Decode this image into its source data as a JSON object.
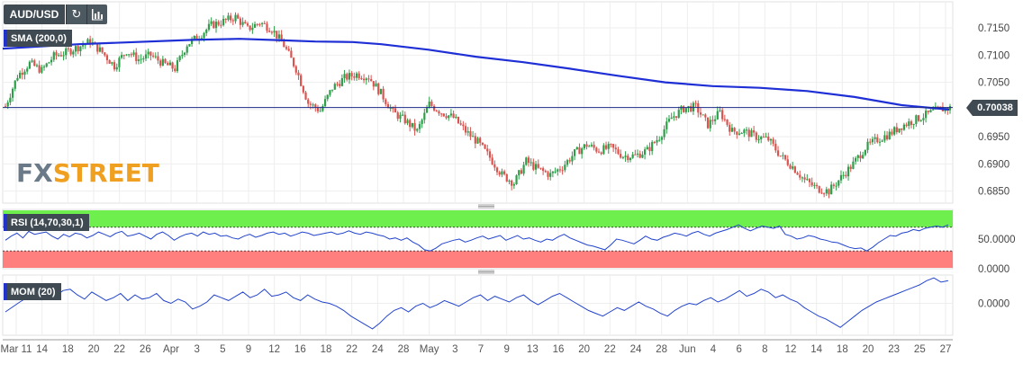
{
  "toolbar": {
    "symbol": "AUD/USD",
    "refresh_icon": "refresh-icon",
    "bars_icon": "bar-chart-icon"
  },
  "watermark": {
    "part1": "FX",
    "part2": "STREET",
    "color1": "#6b7a88",
    "color2": "#f0a020"
  },
  "colors": {
    "up": "#2e9e4a",
    "down": "#d9534f",
    "sma": "#1f2fd6",
    "rsi": "#2244cc",
    "mom": "#2244cc",
    "rsi_upper_zone": "#66ee44",
    "rsi_lower_zone": "#ff7777",
    "badge": "#3f4a52"
  },
  "chart_data": [
    {
      "type": "candlestick",
      "id": "price",
      "symbol": "AUD/USD",
      "indicator_label": "SMA (200,0)",
      "current_price": 0.70038,
      "current_price_label": "0.70038",
      "y_ticks": [
        "0.7150",
        "0.7100",
        "0.7050",
        "0.7000",
        "0.6950",
        "0.6900",
        "0.6850"
      ],
      "ylim": [
        0.6828,
        0.7198
      ],
      "x_ticks": [
        "Mar 11",
        "14",
        "18",
        "20",
        "22",
        "26",
        "Apr",
        "3",
        "5",
        "9",
        "12",
        "16",
        "18",
        "22",
        "24",
        "28",
        "May",
        "3",
        "7",
        "9",
        "13",
        "16",
        "20",
        "22",
        "24",
        "28",
        "Jun",
        "4",
        "6",
        "8",
        "12",
        "14",
        "18",
        "20",
        "23",
        "25",
        "27"
      ],
      "close_path": [
        [
          0,
          0.7006
        ],
        [
          5,
          0.7062
        ],
        [
          10,
          0.7085
        ],
        [
          15,
          0.7072
        ],
        [
          20,
          0.7098
        ],
        [
          25,
          0.7105
        ],
        [
          30,
          0.7115
        ],
        [
          35,
          0.7125
        ],
        [
          40,
          0.7105
        ],
        [
          45,
          0.708
        ],
        [
          50,
          0.7108
        ],
        [
          55,
          0.7092
        ],
        [
          60,
          0.71
        ],
        [
          65,
          0.7085
        ],
        [
          70,
          0.7075
        ],
        [
          75,
          0.712
        ],
        [
          80,
          0.7135
        ],
        [
          85,
          0.7155
        ],
        [
          90,
          0.7162
        ],
        [
          95,
          0.717
        ],
        [
          100,
          0.7148
        ],
        [
          105,
          0.716
        ],
        [
          110,
          0.7148
        ],
        [
          115,
          0.7118
        ],
        [
          120,
          0.7075
        ],
        [
          125,
          0.7012
        ],
        [
          130,
          0.6998
        ],
        [
          135,
          0.704
        ],
        [
          140,
          0.7058
        ],
        [
          145,
          0.7065
        ],
        [
          150,
          0.706
        ],
        [
          155,
          0.703
        ],
        [
          160,
          0.6995
        ],
        [
          165,
          0.698
        ],
        [
          170,
          0.696
        ],
        [
          175,
          0.701
        ],
        [
          180,
          0.6995
        ],
        [
          185,
          0.6985
        ],
        [
          190,
          0.696
        ],
        [
          195,
          0.694
        ],
        [
          200,
          0.6912
        ],
        [
          205,
          0.688
        ],
        [
          210,
          0.6865
        ],
        [
          215,
          0.6905
        ],
        [
          220,
          0.689
        ],
        [
          225,
          0.688
        ],
        [
          230,
          0.6895
        ],
        [
          235,
          0.692
        ],
        [
          240,
          0.6935
        ],
        [
          245,
          0.6925
        ],
        [
          250,
          0.693
        ],
        [
          255,
          0.6915
        ],
        [
          260,
          0.6915
        ],
        [
          265,
          0.6925
        ],
        [
          270,
          0.695
        ],
        [
          275,
          0.6985
        ],
        [
          280,
          0.7002
        ],
        [
          285,
          0.7005
        ],
        [
          290,
          0.6972
        ],
        [
          295,
          0.6995
        ],
        [
          300,
          0.696
        ],
        [
          305,
          0.696
        ],
        [
          310,
          0.695
        ],
        [
          315,
          0.6945
        ],
        [
          320,
          0.6915
        ],
        [
          325,
          0.6895
        ],
        [
          330,
          0.687
        ],
        [
          335,
          0.6855
        ],
        [
          340,
          0.685
        ],
        [
          345,
          0.6875
        ],
        [
          350,
          0.69
        ],
        [
          355,
          0.693
        ],
        [
          360,
          0.6945
        ],
        [
          365,
          0.6955
        ],
        [
          370,
          0.697
        ],
        [
          375,
          0.698
        ],
        [
          380,
          0.699
        ],
        [
          385,
          0.7
        ],
        [
          390,
          0.7003
        ]
      ],
      "sma_path": [
        [
          0.0,
          0.7112
        ],
        [
          0.08,
          0.712
        ],
        [
          0.2,
          0.7128
        ],
        [
          0.25,
          0.713
        ],
        [
          0.3,
          0.7127
        ],
        [
          0.33,
          0.7125
        ],
        [
          0.37,
          0.7124
        ],
        [
          0.4,
          0.712
        ],
        [
          0.45,
          0.711
        ],
        [
          0.5,
          0.7097
        ],
        [
          0.55,
          0.7087
        ],
        [
          0.6,
          0.7075
        ],
        [
          0.65,
          0.7062
        ],
        [
          0.7,
          0.705
        ],
        [
          0.75,
          0.7043
        ],
        [
          0.8,
          0.704
        ],
        [
          0.85,
          0.7034
        ],
        [
          0.9,
          0.7023
        ],
        [
          0.95,
          0.7008
        ],
        [
          1.0,
          0.7
        ]
      ]
    },
    {
      "type": "line",
      "id": "rsi",
      "indicator_label": "RSI (14,70,30,1)",
      "y_ticks": [
        "50.0000",
        "0.0000"
      ],
      "levels": [
        70,
        30
      ],
      "ylim": [
        0,
        100
      ],
      "values": [
        48,
        55,
        60,
        52,
        63,
        58,
        60,
        62,
        55,
        50,
        58,
        54,
        60,
        58,
        52,
        56,
        62,
        58,
        54,
        60,
        63,
        55,
        57,
        60,
        55,
        50,
        58,
        62,
        56,
        48,
        54,
        58,
        60,
        55,
        62,
        58,
        60,
        55,
        56,
        52,
        50,
        55,
        58,
        53,
        56,
        60,
        62,
        58,
        60,
        55,
        58,
        62,
        60,
        56,
        58,
        60,
        62,
        58,
        60,
        64,
        60,
        58,
        62,
        60,
        57,
        55,
        50,
        52,
        48,
        52,
        45,
        40,
        32,
        30,
        35,
        42,
        45,
        48,
        50,
        45,
        48,
        52,
        55,
        50,
        53,
        56,
        48,
        52,
        56,
        50,
        52,
        48,
        45,
        50,
        48,
        54,
        58,
        52,
        48,
        44,
        40,
        38,
        35,
        32,
        40,
        50,
        48,
        45,
        42,
        48,
        55,
        50,
        48,
        53,
        56,
        60,
        58,
        55,
        60,
        63,
        58,
        55,
        60,
        63,
        66,
        70,
        74,
        68,
        64,
        68,
        72,
        70,
        68,
        72,
        58,
        55,
        50,
        52,
        56,
        54,
        50,
        48,
        45,
        44,
        40,
        36,
        34,
        35,
        30,
        36,
        44,
        50,
        56,
        55,
        60,
        62,
        66,
        64,
        68,
        70,
        72,
        70,
        74
      ]
    },
    {
      "type": "line",
      "id": "mom",
      "indicator_label": "MOM (20)",
      "y_ticks": [
        "0.0000"
      ],
      "ylim": [
        -0.0045,
        0.004
      ],
      "values": [
        -0.0012,
        -0.0005,
        0.0002,
        0.0008,
        0.0012,
        0.0005,
        0.0014,
        0.001,
        0.0018,
        0.002,
        0.0012,
        0.0006,
        0.0016,
        0.001,
        0.0004,
        0.0008,
        0.0014,
        0.0004,
        0.0012,
        0.0006,
        0.0008,
        0.0014,
        0.0004,
        0.0,
        0.0006,
        0.0002,
        -0.0008,
        -0.0004,
        0.0002,
        0.0012,
        0.0008,
        0.0004,
        0.001,
        0.0016,
        0.0008,
        0.0012,
        0.002,
        0.001,
        0.0012,
        0.0016,
        0.0008,
        0.0004,
        0.0012,
        0.0006,
        0.0002,
        0.0,
        -0.0004,
        -0.001,
        -0.0018,
        -0.0024,
        -0.003,
        -0.0036,
        -0.0028,
        -0.0018,
        -0.001,
        -0.0006,
        -0.0012,
        -0.0004,
        0.0,
        -0.0006,
        -0.0002,
        0.0004,
        0.0,
        -0.0004,
        0.0002,
        0.0008,
        0.0012,
        0.0004,
        0.001,
        0.0006,
        0.0002,
        0.0008,
        0.0012,
        0.0004,
        -0.0002,
        0.0004,
        0.001,
        0.0014,
        0.0008,
        0.0002,
        -0.0004,
        -0.001,
        -0.0014,
        -0.0018,
        -0.0012,
        -0.0006,
        -0.001,
        -0.0004,
        0.0002,
        -0.0004,
        -0.0008,
        -0.0014,
        -0.0018,
        -0.001,
        -0.0004,
        0.0,
        -0.0002,
        0.0004,
        0.0008,
        0.0002,
        0.0006,
        0.0012,
        0.0018,
        0.001,
        0.0014,
        0.002,
        0.0016,
        0.0008,
        0.0012,
        0.0006,
        0.0002,
        -0.0006,
        -0.0012,
        -0.0018,
        -0.0022,
        -0.0028,
        -0.0034,
        -0.0026,
        -0.0018,
        -0.001,
        -0.0004,
        0.0002,
        0.0006,
        0.001,
        0.0014,
        0.0018,
        0.0022,
        0.0026,
        0.0032,
        0.0036,
        0.003,
        0.0032
      ]
    }
  ]
}
